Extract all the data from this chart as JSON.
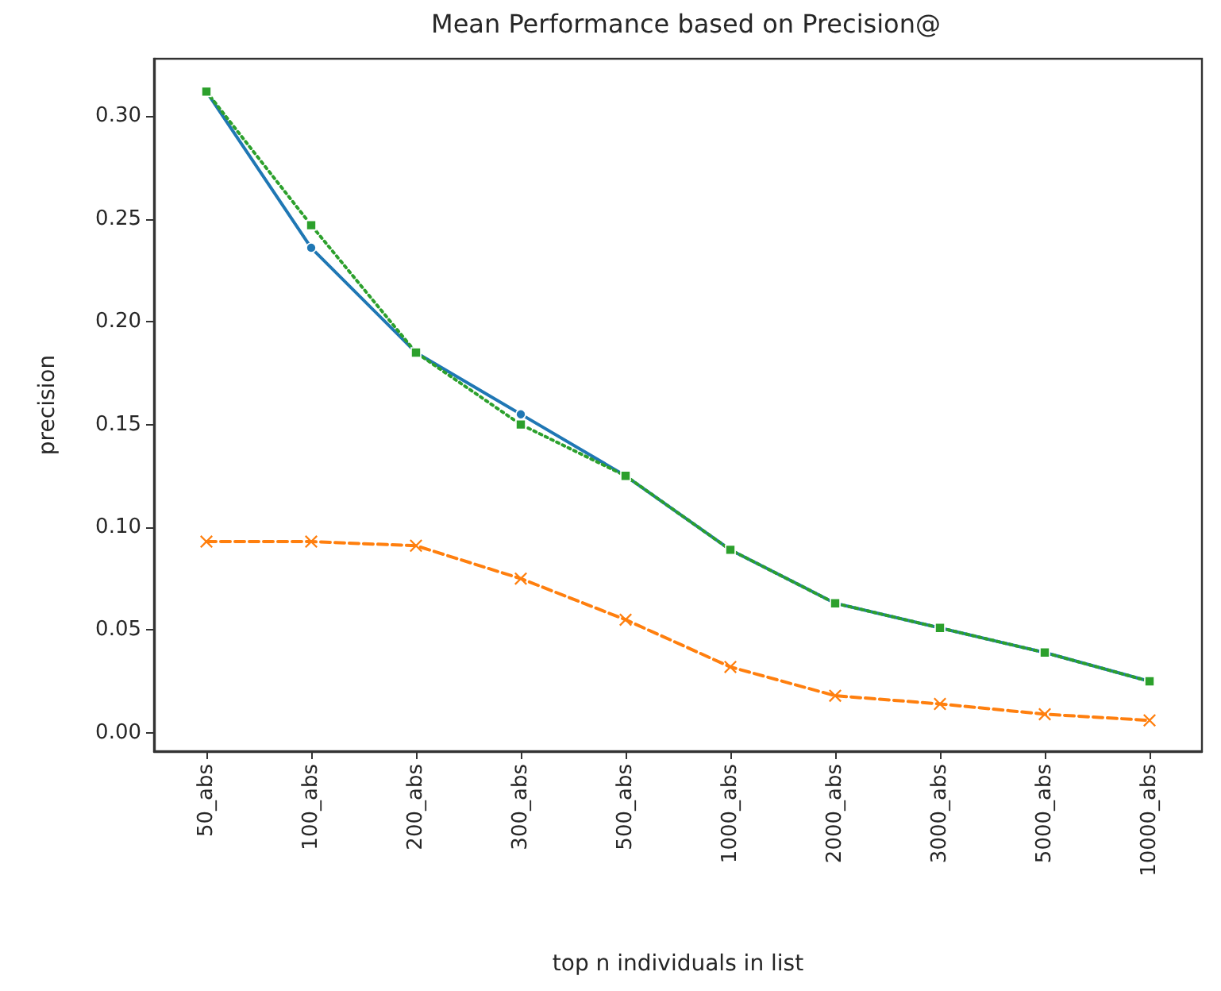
{
  "chart_data": {
    "type": "line",
    "title": "Mean Performance based on Precision@",
    "xlabel": "top n individuals in list",
    "ylabel": "precision",
    "categories": [
      "50_abs",
      "100_abs",
      "200_abs",
      "300_abs",
      "500_abs",
      "1000_abs",
      "2000_abs",
      "3000_abs",
      "5000_abs",
      "10000_abs"
    ],
    "series": [
      {
        "color": "#1f77b4",
        "marker": "circle",
        "line_style": "solid",
        "values": [
          0.312,
          0.236,
          0.185,
          0.155,
          0.125,
          0.089,
          0.063,
          0.051,
          0.039,
          0.025
        ]
      },
      {
        "color": "#ff7f0e",
        "marker": "cross",
        "line_style": "dashed",
        "values": [
          0.093,
          0.093,
          0.091,
          0.075,
          0.055,
          0.032,
          0.018,
          0.014,
          0.009,
          0.006
        ]
      },
      {
        "color": "#2ca02c",
        "marker": "square",
        "line_style": "dotted",
        "values": [
          0.312,
          0.247,
          0.185,
          0.15,
          0.125,
          0.089,
          0.063,
          0.051,
          0.039,
          0.025
        ]
      }
    ],
    "ylim": [
      -0.009,
      0.328
    ],
    "yticks": [
      {
        "value": 0,
        "label": "0.00"
      },
      {
        "value": 0.05,
        "label": "0.05"
      },
      {
        "value": 0.1,
        "label": "0.10"
      },
      {
        "value": 0.15,
        "label": "0.15"
      },
      {
        "value": 0.2,
        "label": "0.20"
      },
      {
        "value": 0.25,
        "label": "0.25"
      },
      {
        "value": 0.3,
        "label": "0.30"
      }
    ],
    "grid": false
  }
}
